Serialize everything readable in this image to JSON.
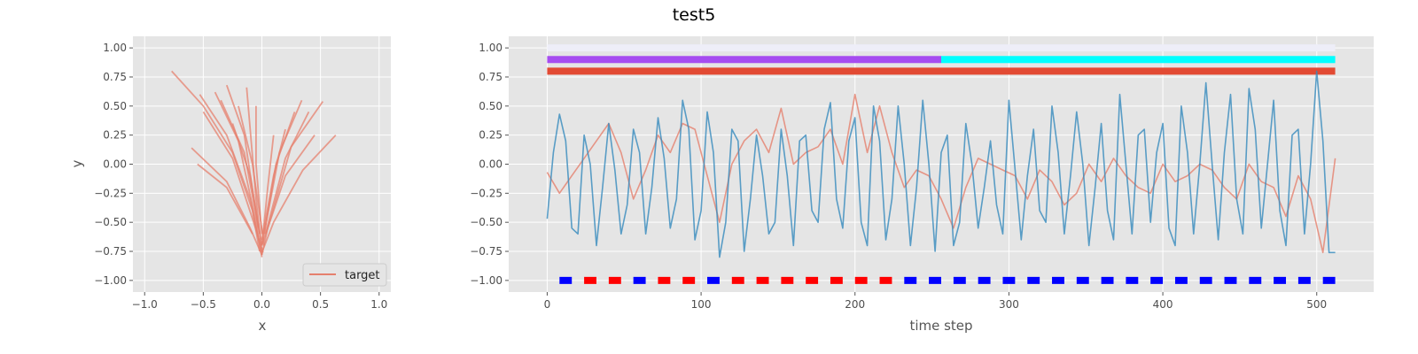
{
  "figure_title": "test5",
  "colors": {
    "background": "#e5e5e5",
    "grid": "#ffffff",
    "target": "#e5806d",
    "blue_signal": "#348abd",
    "purple_bar": "#a64df0",
    "cyan_bar": "#00ffff",
    "red_bar": "#e24a33",
    "pale_bar": "#eeeef8",
    "blue_marker": "#0000ff",
    "red_marker": "#ff0000"
  },
  "chart_data": [
    {
      "type": "line",
      "name": "trajectory",
      "xlabel": "x",
      "ylabel": "y",
      "xlim": [
        -1.1,
        1.1
      ],
      "ylim": [
        -1.1,
        1.1
      ],
      "xticks": [
        -1.0,
        -0.5,
        0.0,
        0.5,
        1.0
      ],
      "xtick_labels": [
        "−1.0",
        "−0.5",
        "0.0",
        "0.5",
        "1.0"
      ],
      "yticks": [
        -1.0,
        -0.75,
        -0.5,
        -0.25,
        0.0,
        0.25,
        0.5,
        0.75,
        1.0
      ],
      "ytick_labels": [
        "−1.00",
        "−0.75",
        "−0.50",
        "−0.25",
        "0.00",
        "0.25",
        "0.50",
        "0.75",
        "1.00"
      ],
      "grid": true,
      "legend": {
        "position": "bottom-right",
        "entries": [
          "target"
        ]
      },
      "series": [
        {
          "name": "target",
          "strokes": [
            [
              [
                -0.77,
                0.8
              ],
              [
                -0.5,
                0.5
              ],
              [
                -0.25,
                0.1
              ],
              [
                -0.08,
                -0.4
              ],
              [
                -0.02,
                -0.75
              ]
            ],
            [
              [
                -0.53,
                0.6
              ],
              [
                -0.3,
                0.25
              ],
              [
                -0.1,
                -0.3
              ],
              [
                0.0,
                -0.78
              ]
            ],
            [
              [
                -0.5,
                0.45
              ],
              [
                -0.25,
                0.05
              ],
              [
                -0.07,
                -0.5
              ],
              [
                0.01,
                -0.76
              ]
            ],
            [
              [
                -0.4,
                0.62
              ],
              [
                -0.2,
                0.2
              ],
              [
                -0.05,
                -0.5
              ],
              [
                0.0,
                -0.8
              ]
            ],
            [
              [
                -0.35,
                0.55
              ],
              [
                -0.15,
                0.1
              ],
              [
                -0.02,
                -0.6
              ]
            ],
            [
              [
                -0.3,
                0.68
              ],
              [
                -0.15,
                0.25
              ],
              [
                -0.03,
                -0.55
              ]
            ],
            [
              [
                -0.25,
                0.35
              ],
              [
                -0.1,
                -0.1
              ],
              [
                0.0,
                -0.7
              ]
            ],
            [
              [
                -0.2,
                0.5
              ],
              [
                -0.08,
                0.0
              ],
              [
                0.02,
                -0.7
              ]
            ],
            [
              [
                -0.13,
                0.66
              ],
              [
                -0.1,
                0.3
              ],
              [
                -0.05,
                -0.3
              ],
              [
                0.0,
                -0.75
              ]
            ],
            [
              [
                -0.05,
                0.5
              ],
              [
                -0.05,
                0.0
              ],
              [
                0.0,
                -0.6
              ]
            ],
            [
              [
                -0.6,
                0.14
              ],
              [
                -0.3,
                -0.15
              ],
              [
                -0.1,
                -0.55
              ],
              [
                0.0,
                -0.78
              ]
            ],
            [
              [
                -0.55,
                0.0
              ],
              [
                -0.3,
                -0.2
              ],
              [
                -0.08,
                -0.6
              ]
            ],
            [
              [
                0.1,
                0.25
              ],
              [
                0.05,
                -0.2
              ],
              [
                0.0,
                -0.7
              ]
            ],
            [
              [
                0.2,
                0.3
              ],
              [
                0.1,
                -0.1
              ],
              [
                0.0,
                -0.65
              ]
            ],
            [
              [
                0.28,
                0.45
              ],
              [
                0.12,
                0.0
              ],
              [
                0.02,
                -0.6
              ]
            ],
            [
              [
                0.34,
                0.55
              ],
              [
                0.15,
                0.1
              ],
              [
                0.0,
                -0.7
              ]
            ],
            [
              [
                0.4,
                0.45
              ],
              [
                0.2,
                0.05
              ],
              [
                0.03,
                -0.6
              ]
            ],
            [
              [
                0.52,
                0.54
              ],
              [
                0.25,
                0.15
              ],
              [
                0.05,
                -0.55
              ],
              [
                0.0,
                -0.78
              ]
            ],
            [
              [
                0.45,
                0.25
              ],
              [
                0.2,
                -0.1
              ],
              [
                0.0,
                -0.7
              ]
            ],
            [
              [
                0.63,
                0.25
              ],
              [
                0.35,
                -0.05
              ],
              [
                0.1,
                -0.5
              ],
              [
                0.0,
                -0.76
              ]
            ]
          ]
        }
      ]
    },
    {
      "type": "line",
      "name": "time-series",
      "xlabel": "time step",
      "ylabel": "",
      "xlim": [
        -25,
        537
      ],
      "ylim": [
        -1.1,
        1.1
      ],
      "xticks": [
        0,
        100,
        200,
        300,
        400,
        500
      ],
      "xtick_labels": [
        "0",
        "100",
        "200",
        "300",
        "400",
        "500"
      ],
      "yticks": [
        -1.0,
        -0.75,
        -0.5,
        -0.25,
        0.0,
        0.25,
        0.5,
        0.75,
        1.0
      ],
      "ytick_labels": [
        "−1.00",
        "−0.75",
        "−0.50",
        "−0.25",
        "0.00",
        "0.25",
        "0.50",
        "0.75",
        "1.00"
      ],
      "grid": true,
      "bands": [
        {
          "y": 1.0,
          "x": [
            0,
            512
          ],
          "color": "#eeeef8"
        },
        {
          "y": 0.9,
          "x": [
            0,
            256
          ],
          "color": "#a64df0"
        },
        {
          "y": 0.9,
          "x": [
            256,
            512
          ],
          "color": "#00ffff"
        },
        {
          "y": 0.8,
          "x": [
            0,
            512
          ],
          "color": "#e24a33"
        }
      ],
      "markers": {
        "y": -1.0,
        "width": 8,
        "starts": [
          8,
          24,
          40,
          56,
          72,
          88,
          104,
          120,
          136,
          152,
          168,
          184,
          200,
          216,
          232,
          248,
          264,
          280,
          296,
          312,
          328,
          344,
          360,
          376,
          392,
          408,
          424,
          440,
          456,
          472,
          488,
          504
        ],
        "colors": [
          "#0000ff",
          "#ff0000",
          "#ff0000",
          "#0000ff",
          "#ff0000",
          "#ff0000",
          "#0000ff",
          "#ff0000",
          "#ff0000",
          "#ff0000",
          "#ff0000",
          "#ff0000",
          "#ff0000",
          "#ff0000",
          "#0000ff",
          "#0000ff",
          "#0000ff",
          "#0000ff",
          "#0000ff",
          "#0000ff",
          "#0000ff",
          "#0000ff",
          "#0000ff",
          "#0000ff",
          "#0000ff",
          "#0000ff",
          "#0000ff",
          "#0000ff",
          "#0000ff",
          "#0000ff",
          "#0000ff",
          "#0000ff"
        ]
      },
      "series": [
        {
          "color": "#e5806d",
          "x": [
            0,
            8,
            16,
            24,
            32,
            40,
            48,
            56,
            64,
            72,
            80,
            88,
            96,
            104,
            112,
            120,
            128,
            136,
            144,
            152,
            160,
            168,
            176,
            184,
            192,
            200,
            208,
            216,
            224,
            232,
            240,
            248,
            256,
            264,
            272,
            280,
            288,
            296,
            304,
            312,
            320,
            328,
            336,
            344,
            352,
            360,
            368,
            376,
            384,
            392,
            400,
            408,
            416,
            424,
            432,
            440,
            448,
            456,
            464,
            472,
            480,
            488,
            496,
            504,
            512
          ],
          "y": [
            -0.07,
            -0.25,
            -0.1,
            0.05,
            0.2,
            0.35,
            0.1,
            -0.3,
            -0.05,
            0.25,
            0.1,
            0.35,
            0.3,
            -0.1,
            -0.5,
            0.0,
            0.2,
            0.3,
            0.1,
            0.48,
            0.0,
            0.1,
            0.15,
            0.3,
            0.0,
            0.6,
            0.1,
            0.5,
            0.1,
            -0.2,
            -0.05,
            -0.1,
            -0.3,
            -0.55,
            -0.2,
            0.05,
            0.0,
            -0.05,
            -0.1,
            -0.3,
            -0.05,
            -0.15,
            -0.35,
            -0.25,
            0.0,
            -0.15,
            0.05,
            -0.1,
            -0.2,
            -0.25,
            0.0,
            -0.15,
            -0.1,
            0.0,
            -0.05,
            -0.2,
            -0.3,
            0.0,
            -0.15,
            -0.2,
            -0.45,
            -0.1,
            -0.3,
            -0.76,
            0.05
          ]
        },
        {
          "color": "#348abd",
          "x": [
            0,
            4,
            8,
            12,
            16,
            20,
            24,
            28,
            32,
            36,
            40,
            44,
            48,
            52,
            56,
            60,
            64,
            68,
            72,
            76,
            80,
            84,
            88,
            92,
            96,
            100,
            104,
            108,
            112,
            116,
            120,
            124,
            128,
            132,
            136,
            140,
            144,
            148,
            152,
            156,
            160,
            164,
            168,
            172,
            176,
            180,
            184,
            188,
            192,
            196,
            200,
            204,
            208,
            212,
            216,
            220,
            224,
            228,
            232,
            236,
            240,
            244,
            248,
            252,
            256,
            260,
            264,
            268,
            272,
            276,
            280,
            284,
            288,
            292,
            296,
            300,
            304,
            308,
            312,
            316,
            320,
            324,
            328,
            332,
            336,
            340,
            344,
            348,
            352,
            356,
            360,
            364,
            368,
            372,
            376,
            380,
            384,
            388,
            392,
            396,
            400,
            404,
            408,
            412,
            416,
            420,
            424,
            428,
            432,
            436,
            440,
            444,
            448,
            452,
            456,
            460,
            464,
            468,
            472,
            476,
            480,
            484,
            488,
            492,
            496,
            500,
            504,
            508,
            512
          ],
          "y": [
            -0.47,
            0.1,
            0.43,
            0.2,
            -0.55,
            -0.6,
            0.25,
            0.0,
            -0.7,
            -0.2,
            0.35,
            -0.05,
            -0.6,
            -0.35,
            0.3,
            0.1,
            -0.6,
            -0.2,
            0.4,
            0.05,
            -0.55,
            -0.3,
            0.55,
            0.3,
            -0.65,
            -0.4,
            0.45,
            0.1,
            -0.8,
            -0.5,
            0.3,
            0.2,
            -0.75,
            -0.3,
            0.25,
            -0.1,
            -0.6,
            -0.5,
            0.3,
            -0.1,
            -0.7,
            0.2,
            0.25,
            -0.4,
            -0.5,
            0.3,
            0.53,
            -0.3,
            -0.55,
            0.2,
            0.4,
            -0.5,
            -0.7,
            0.5,
            0.2,
            -0.65,
            -0.3,
            0.5,
            0.0,
            -0.7,
            -0.2,
            0.55,
            0.0,
            -0.75,
            0.1,
            0.25,
            -0.7,
            -0.5,
            0.35,
            0.0,
            -0.55,
            -0.2,
            0.2,
            -0.35,
            -0.6,
            0.55,
            -0.05,
            -0.65,
            -0.1,
            0.3,
            -0.4,
            -0.5,
            0.5,
            0.1,
            -0.6,
            -0.1,
            0.45,
            0.0,
            -0.7,
            -0.2,
            0.35,
            -0.4,
            -0.65,
            0.6,
            0.0,
            -0.6,
            0.25,
            0.3,
            -0.5,
            0.1,
            0.35,
            -0.55,
            -0.7,
            0.5,
            0.1,
            -0.6,
            0.0,
            0.7,
            0.0,
            -0.65,
            0.1,
            0.6,
            -0.3,
            -0.6,
            0.65,
            0.3,
            -0.55,
            0.0,
            0.55,
            -0.4,
            -0.7,
            0.25,
            0.3,
            -0.6,
            0.0,
            0.8,
            0.2,
            -0.76,
            -0.76
          ]
        }
      ]
    }
  ]
}
